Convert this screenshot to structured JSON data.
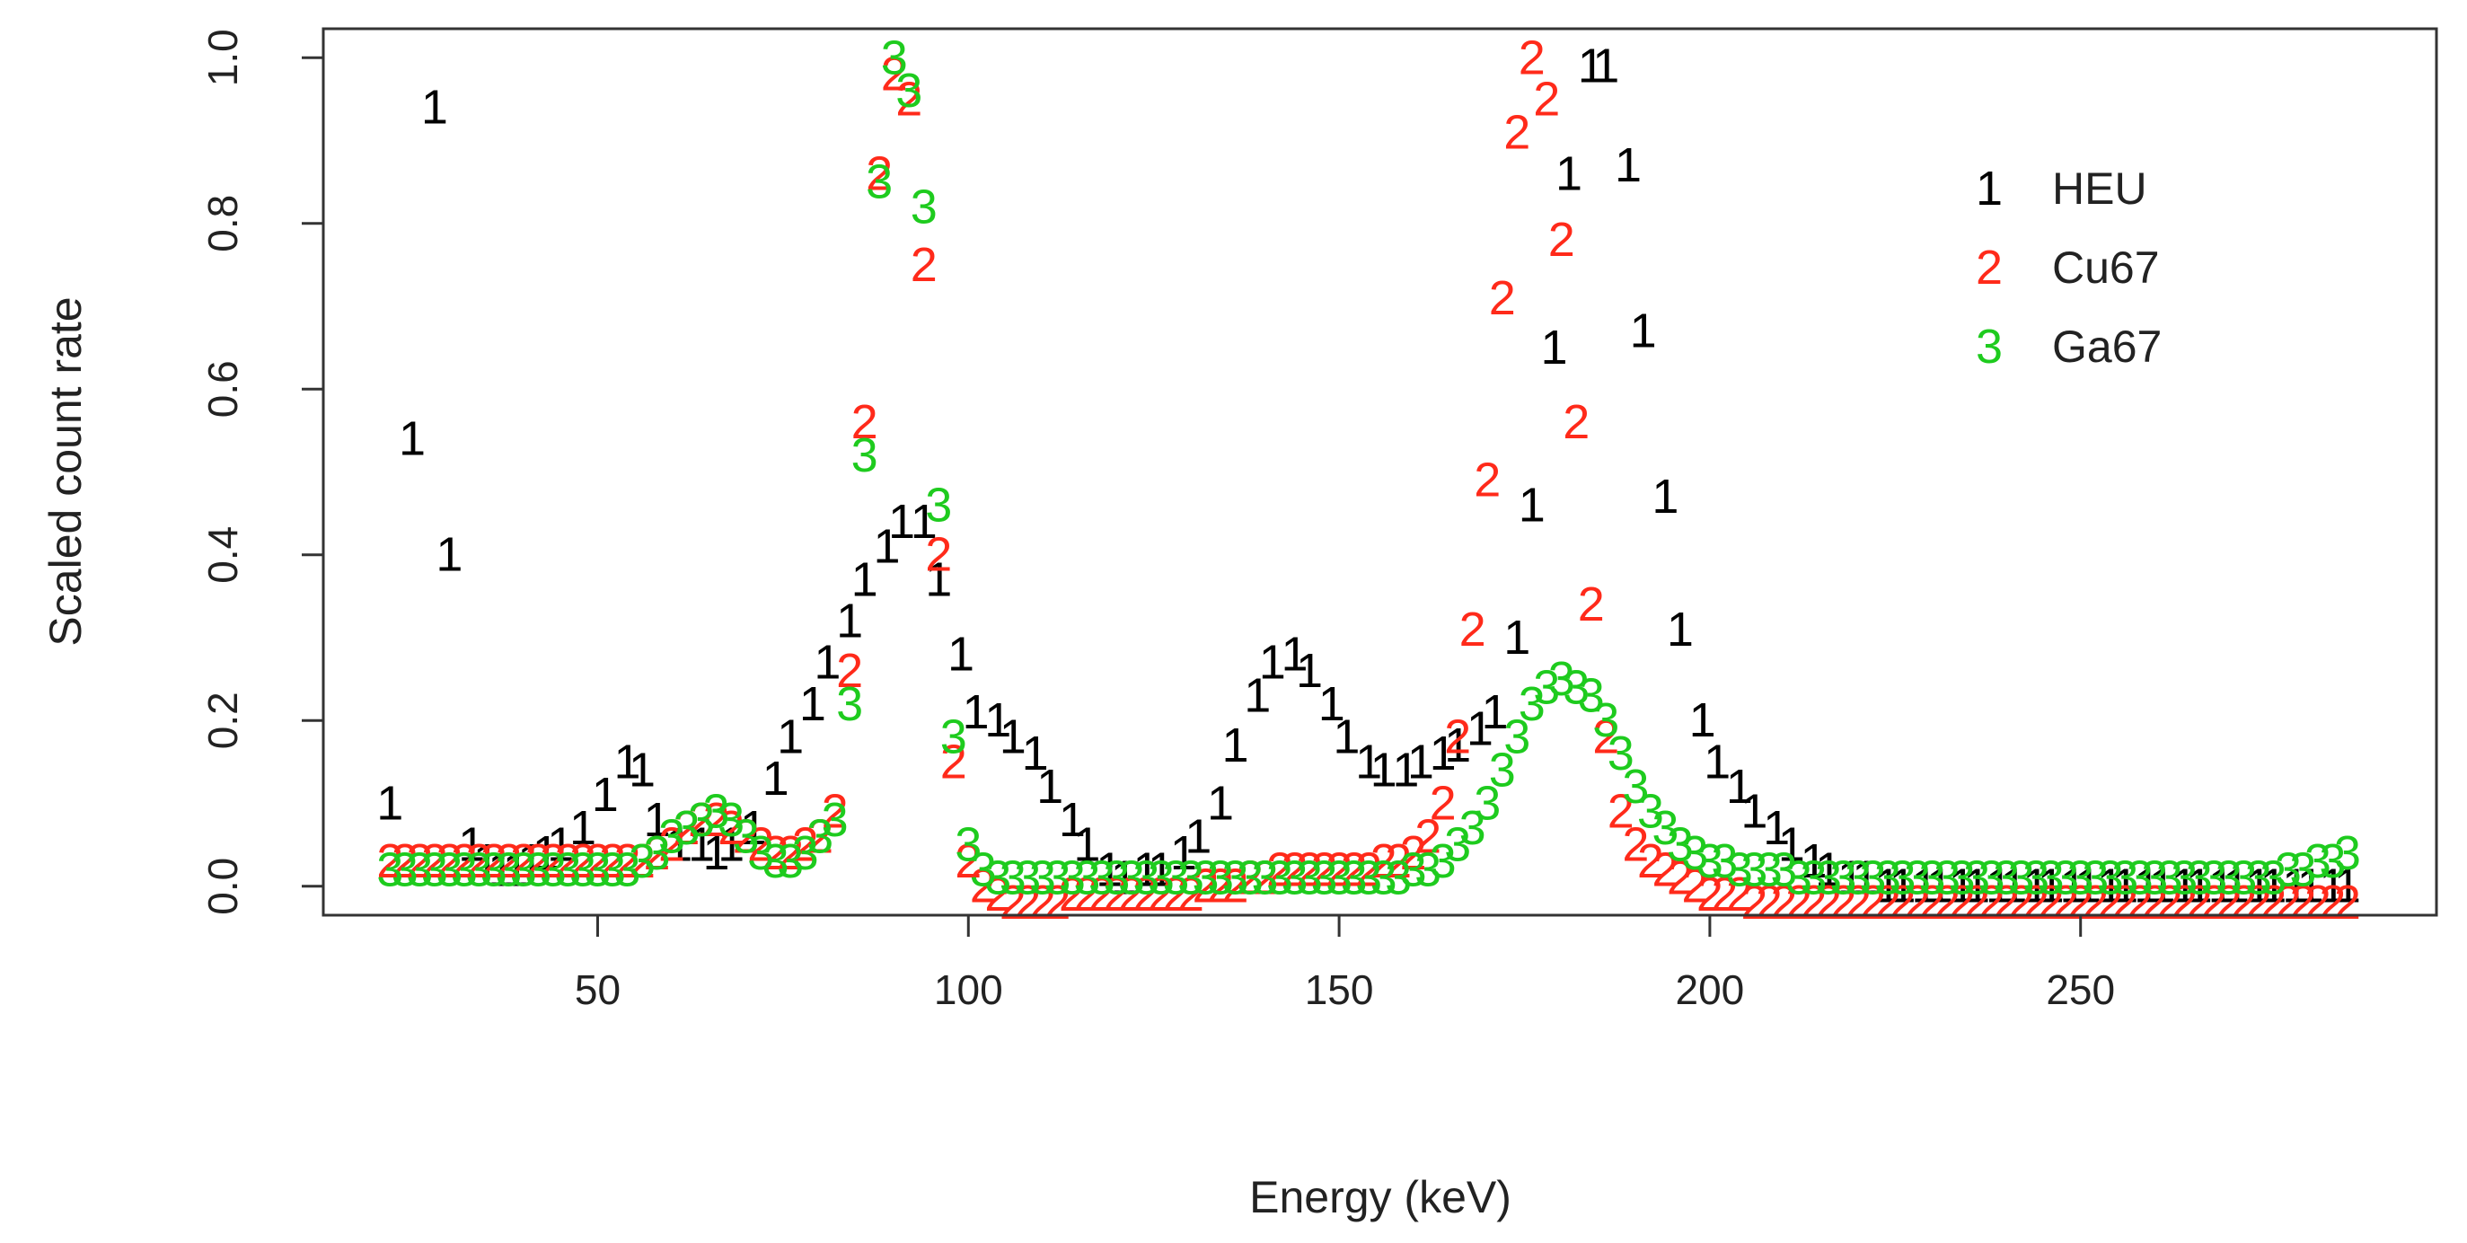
{
  "chart_data": {
    "type": "scatter",
    "title": "",
    "xlabel": "Energy (keV)",
    "ylabel": "Scaled count rate",
    "xlim": [
      13,
      298
    ],
    "ylim": [
      -0.035,
      1.035
    ],
    "xticks": [
      "50",
      "100",
      "150",
      "200",
      "250"
    ],
    "xtick_values": [
      50,
      100,
      150,
      200,
      250
    ],
    "yticks": [
      "0.0",
      "0.2",
      "0.4",
      "0.6",
      "0.8",
      "1.0"
    ],
    "ytick_values": [
      0.0,
      0.2,
      0.4,
      0.6,
      0.8,
      1.0
    ],
    "legend_position": "top-right",
    "series": [
      {
        "name": "HEU",
        "symbol": "1",
        "color": "#000000",
        "x": [
          22,
          25,
          28,
          30,
          33,
          35,
          37,
          39,
          41,
          43,
          45,
          48,
          51,
          54,
          56,
          58,
          61,
          64,
          66,
          68,
          71,
          74,
          76,
          79,
          81,
          84,
          86,
          89,
          91,
          94,
          96,
          99,
          101,
          104,
          106,
          109,
          111,
          114,
          116,
          119,
          121,
          124,
          126,
          129,
          131,
          134,
          136,
          139,
          141,
          144,
          146,
          149,
          151,
          154,
          156,
          159,
          161,
          164,
          166,
          169,
          171,
          174,
          176,
          179,
          181,
          184,
          186,
          189,
          191,
          194,
          196,
          199,
          201,
          204,
          206,
          209,
          211,
          214,
          216,
          219,
          221,
          224,
          226,
          229,
          231,
          234,
          236,
          239,
          241,
          244,
          246,
          249,
          251,
          254,
          256,
          259,
          261,
          264,
          266,
          269,
          271,
          274,
          276,
          279,
          281,
          284,
          286
        ],
        "y": [
          0.1,
          0.54,
          0.94,
          0.4,
          0.05,
          0.03,
          0.02,
          0.02,
          0.03,
          0.04,
          0.05,
          0.07,
          0.11,
          0.15,
          0.14,
          0.08,
          0.05,
          0.05,
          0.04,
          0.05,
          0.07,
          0.13,
          0.18,
          0.22,
          0.27,
          0.32,
          0.37,
          0.41,
          0.44,
          0.44,
          0.37,
          0.28,
          0.21,
          0.2,
          0.18,
          0.16,
          0.12,
          0.08,
          0.05,
          0.02,
          0.01,
          0.02,
          0.02,
          0.04,
          0.06,
          0.1,
          0.17,
          0.23,
          0.27,
          0.28,
          0.26,
          0.22,
          0.18,
          0.15,
          0.14,
          0.14,
          0.15,
          0.16,
          0.17,
          0.19,
          0.21,
          0.3,
          0.46,
          0.65,
          0.86,
          0.99,
          0.99,
          0.87,
          0.67,
          0.47,
          0.31,
          0.2,
          0.15,
          0.12,
          0.09,
          0.07,
          0.05,
          0.03,
          0.02,
          0.01,
          0.01,
          0.0,
          0.0,
          0.0,
          0.0,
          0.0,
          0.0,
          0.0,
          0.0,
          0.0,
          0.0,
          0.0,
          0.0,
          0.0,
          0.0,
          0.0,
          0.0,
          0.0,
          0.0,
          0.0,
          0.0,
          0.0,
          0.0,
          0.0,
          0.0,
          0.0,
          0.0
        ]
      },
      {
        "name": "Cu67",
        "symbol": "2",
        "color": "#ff2a1a",
        "x": [
          22,
          24,
          26,
          28,
          30,
          32,
          34,
          36,
          38,
          40,
          42,
          44,
          46,
          48,
          50,
          52,
          54,
          56,
          58,
          60,
          62,
          64,
          66,
          68,
          70,
          72,
          74,
          76,
          78,
          80,
          82,
          84,
          86,
          88,
          90,
          92,
          94,
          96,
          98,
          100,
          102,
          104,
          106,
          108,
          110,
          112,
          114,
          116,
          118,
          120,
          122,
          124,
          126,
          128,
          130,
          132,
          134,
          136,
          138,
          140,
          142,
          144,
          146,
          148,
          150,
          152,
          154,
          156,
          158,
          160,
          162,
          164,
          166,
          168,
          170,
          172,
          174,
          176,
          178,
          180,
          182,
          184,
          186,
          188,
          190,
          192,
          194,
          196,
          198,
          200,
          202,
          204,
          206,
          208,
          210,
          212,
          214,
          216,
          218,
          220,
          222,
          224,
          226,
          228,
          230,
          232,
          234,
          236,
          238,
          240,
          242,
          244,
          246,
          248,
          250,
          252,
          254,
          256,
          258,
          260,
          262,
          264,
          266,
          268,
          270,
          272,
          274,
          276,
          278,
          280,
          282,
          284,
          286
        ],
        "y": [
          0.03,
          0.03,
          0.03,
          0.03,
          0.03,
          0.03,
          0.03,
          0.03,
          0.03,
          0.03,
          0.03,
          0.03,
          0.03,
          0.03,
          0.03,
          0.03,
          0.03,
          0.03,
          0.04,
          0.05,
          0.07,
          0.08,
          0.08,
          0.07,
          0.06,
          0.05,
          0.04,
          0.04,
          0.05,
          0.06,
          0.09,
          0.26,
          0.56,
          0.86,
          0.98,
          0.95,
          0.75,
          0.4,
          0.15,
          0.03,
          0.0,
          -0.01,
          -0.02,
          -0.02,
          -0.02,
          -0.02,
          -0.01,
          -0.01,
          -0.01,
          -0.01,
          -0.01,
          -0.01,
          -0.01,
          -0.01,
          -0.01,
          0.0,
          0.0,
          0.0,
          0.01,
          0.01,
          0.02,
          0.02,
          0.02,
          0.02,
          0.02,
          0.02,
          0.02,
          0.03,
          0.03,
          0.04,
          0.06,
          0.1,
          0.18,
          0.31,
          0.49,
          0.71,
          0.91,
          1.0,
          0.95,
          0.78,
          0.56,
          0.34,
          0.18,
          0.09,
          0.05,
          0.03,
          0.02,
          0.01,
          0.0,
          -0.01,
          -0.01,
          -0.01,
          -0.02,
          -0.02,
          -0.02,
          -0.02,
          -0.02,
          -0.02,
          -0.02,
          -0.02,
          -0.02,
          -0.02,
          -0.02,
          -0.02,
          -0.02,
          -0.02,
          -0.02,
          -0.02,
          -0.02,
          -0.02,
          -0.02,
          -0.02,
          -0.02,
          -0.02,
          -0.02,
          -0.02,
          -0.02,
          -0.02,
          -0.02,
          -0.02,
          -0.02,
          -0.02,
          -0.02,
          -0.02,
          -0.02,
          -0.02,
          -0.02,
          -0.02,
          -0.02,
          -0.02,
          -0.02,
          -0.02,
          -0.02
        ]
      },
      {
        "name": "Ga67",
        "symbol": "3",
        "color": "#1ecb1e",
        "x": [
          22,
          24,
          26,
          28,
          30,
          32,
          34,
          36,
          38,
          40,
          42,
          44,
          46,
          48,
          50,
          52,
          54,
          56,
          58,
          60,
          62,
          64,
          66,
          68,
          70,
          72,
          74,
          76,
          78,
          80,
          82,
          84,
          86,
          88,
          90,
          92,
          94,
          96,
          98,
          100,
          102,
          104,
          106,
          108,
          110,
          112,
          114,
          116,
          118,
          120,
          122,
          124,
          126,
          128,
          130,
          132,
          134,
          136,
          138,
          140,
          142,
          144,
          146,
          148,
          150,
          152,
          154,
          156,
          158,
          160,
          162,
          164,
          166,
          168,
          170,
          172,
          174,
          176,
          178,
          180,
          182,
          184,
          186,
          188,
          190,
          192,
          194,
          196,
          198,
          200,
          202,
          204,
          206,
          208,
          210,
          212,
          214,
          216,
          218,
          220,
          222,
          224,
          226,
          228,
          230,
          232,
          234,
          236,
          238,
          240,
          242,
          244,
          246,
          248,
          250,
          252,
          254,
          256,
          258,
          260,
          262,
          264,
          266,
          268,
          270,
          272,
          274,
          276,
          278,
          280,
          282,
          284,
          286
        ],
        "y": [
          0.02,
          0.02,
          0.02,
          0.02,
          0.02,
          0.02,
          0.02,
          0.02,
          0.02,
          0.02,
          0.02,
          0.02,
          0.02,
          0.02,
          0.02,
          0.02,
          0.02,
          0.03,
          0.04,
          0.06,
          0.07,
          0.08,
          0.09,
          0.08,
          0.06,
          0.04,
          0.03,
          0.03,
          0.04,
          0.06,
          0.08,
          0.22,
          0.52,
          0.85,
          1.0,
          0.96,
          0.82,
          0.46,
          0.18,
          0.05,
          0.02,
          0.01,
          0.01,
          0.01,
          0.01,
          0.01,
          0.01,
          0.01,
          0.01,
          0.01,
          0.01,
          0.01,
          0.01,
          0.01,
          0.01,
          0.01,
          0.01,
          0.01,
          0.01,
          0.01,
          0.01,
          0.01,
          0.01,
          0.01,
          0.01,
          0.01,
          0.01,
          0.01,
          0.01,
          0.02,
          0.02,
          0.03,
          0.05,
          0.07,
          0.1,
          0.14,
          0.18,
          0.22,
          0.24,
          0.25,
          0.24,
          0.23,
          0.2,
          0.16,
          0.12,
          0.09,
          0.07,
          0.05,
          0.04,
          0.03,
          0.03,
          0.02,
          0.02,
          0.02,
          0.02,
          0.01,
          0.01,
          0.01,
          0.01,
          0.01,
          0.01,
          0.01,
          0.01,
          0.01,
          0.01,
          0.01,
          0.01,
          0.01,
          0.01,
          0.01,
          0.01,
          0.01,
          0.01,
          0.01,
          0.01,
          0.01,
          0.01,
          0.01,
          0.01,
          0.01,
          0.01,
          0.01,
          0.01,
          0.01,
          0.01,
          0.01,
          0.01,
          0.01,
          0.02,
          0.02,
          0.03,
          0.03,
          0.04
        ]
      }
    ],
    "legend": [
      {
        "symbol": "1",
        "label": "HEU",
        "color": "#000000"
      },
      {
        "symbol": "2",
        "label": "Cu67",
        "color": "#ff2a1a"
      },
      {
        "symbol": "3",
        "label": "Ga67",
        "color": "#1ecb1e"
      }
    ]
  }
}
